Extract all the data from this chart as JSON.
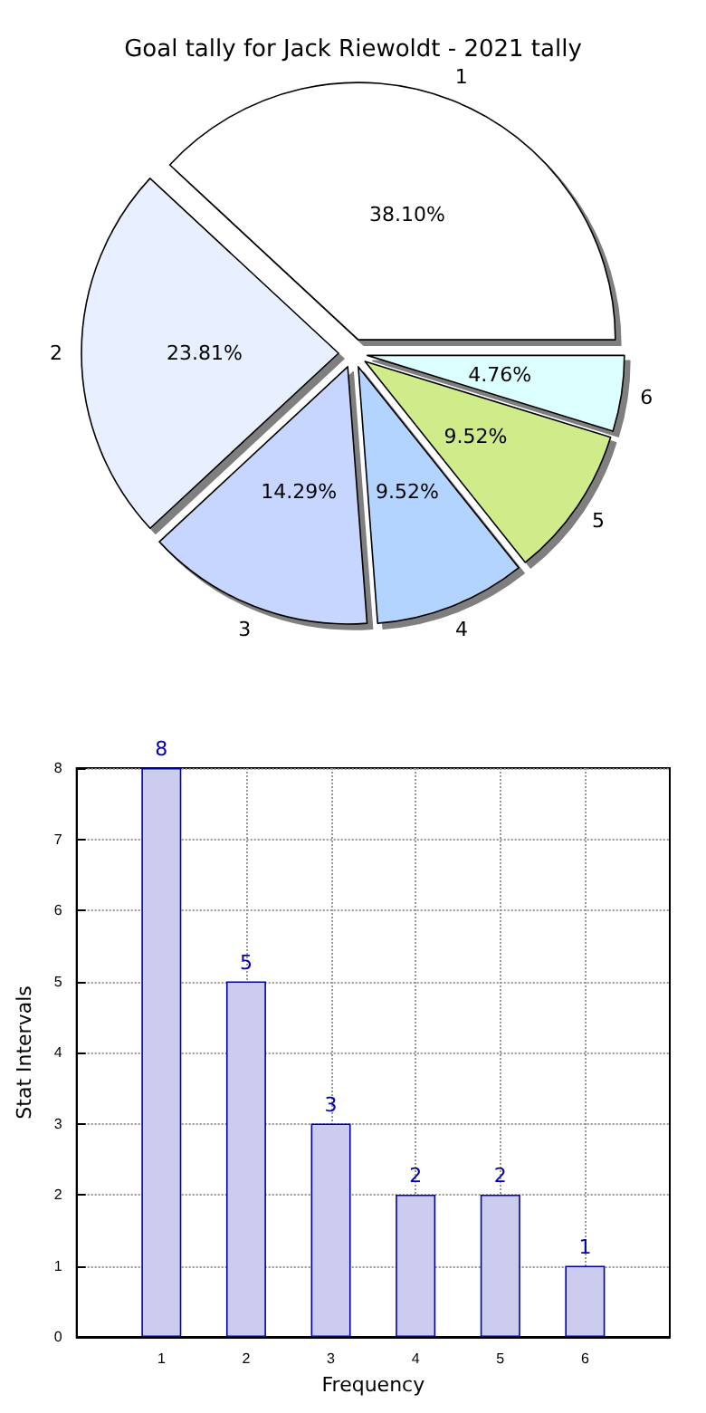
{
  "chart_data": [
    {
      "type": "pie",
      "title": "Goal tally for Jack Riewoldt - 2021 tally",
      "categories": [
        "1",
        "2",
        "3",
        "4",
        "5",
        "6"
      ],
      "values": [
        38.1,
        23.81,
        14.29,
        9.52,
        9.52,
        4.76
      ],
      "value_labels": [
        "38.10%",
        "23.81%",
        "14.29%",
        "9.52%",
        "9.52%",
        "4.76%"
      ],
      "colors": [
        "#ffffff",
        "#e8f0ff",
        "#c6d6ff",
        "#b3d4ff",
        "#cfeb8a",
        "#dcffff"
      ],
      "legend": false
    },
    {
      "type": "bar",
      "x": [
        1,
        2,
        3,
        4,
        5,
        6
      ],
      "values": [
        8,
        5,
        3,
        2,
        2,
        1
      ],
      "color": "#ccccee",
      "xlim": [
        0,
        7
      ],
      "xticks": [
        1,
        2,
        3,
        4,
        5,
        6
      ],
      "ylim": [
        0,
        8
      ],
      "yticks": [
        0,
        1,
        2,
        3,
        4,
        5,
        6,
        7,
        8
      ],
      "xlabel": "Frequency",
      "ylabel": "Stat Intervals",
      "grid": true,
      "data_labels": true,
      "legend": false
    }
  ]
}
